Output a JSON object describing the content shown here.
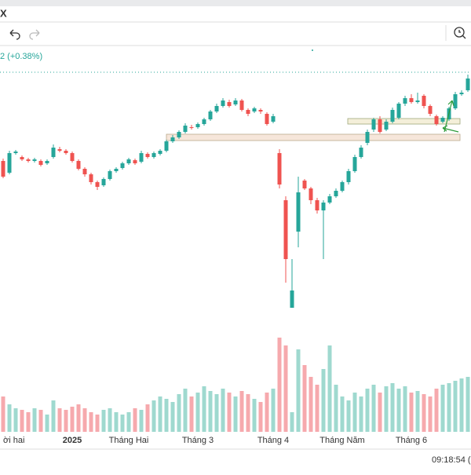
{
  "toolbar": {
    "tab": "X"
  },
  "header": {
    "change": "2 (+0.38%)"
  },
  "status": {
    "time": "09:18:54 ("
  },
  "chart_data": {
    "type": "candlestick",
    "up_color": "#26a69a",
    "down_color": "#ef5350",
    "volume_up_color": "#9fd9cf",
    "volume_down_color": "#f6a9ad",
    "ylim": [
      0,
      320
    ],
    "categories": [
      "ời hai",
      null,
      null,
      null,
      null,
      null,
      null,
      null,
      null,
      null,
      null,
      "2025",
      null,
      null,
      null,
      null,
      null,
      null,
      null,
      null,
      "Tháng Hai",
      null,
      null,
      null,
      null,
      null,
      null,
      null,
      null,
      null,
      null,
      "Tháng 3",
      null,
      null,
      null,
      null,
      null,
      null,
      null,
      null,
      null,
      null,
      null,
      "Tháng 4",
      null,
      null,
      null,
      null,
      null,
      null,
      null,
      null,
      null,
      null,
      "Tháng Năm",
      null,
      null,
      null,
      null,
      null,
      null,
      null,
      null,
      null,
      null,
      "Tháng 6",
      null,
      null,
      null,
      null,
      null,
      null,
      null,
      null,
      null
    ],
    "ohlc": [
      [
        195,
        198,
        173,
        175
      ],
      [
        180,
        208,
        178,
        205
      ],
      [
        205,
        209,
        203,
        207
      ],
      [
        200,
        202,
        195,
        197
      ],
      [
        197,
        199,
        193,
        195
      ],
      [
        195,
        199,
        193,
        197
      ],
      [
        195,
        197,
        188,
        190
      ],
      [
        192,
        197,
        190,
        195
      ],
      [
        200,
        216,
        198,
        212
      ],
      [
        210,
        213,
        206,
        208
      ],
      [
        208,
        210,
        203,
        205
      ],
      [
        205,
        207,
        193,
        195
      ],
      [
        195,
        197,
        183,
        185
      ],
      [
        185,
        187,
        175,
        178
      ],
      [
        178,
        180,
        165,
        168
      ],
      [
        168,
        170,
        158,
        162
      ],
      [
        164,
        174,
        162,
        172
      ],
      [
        172,
        184,
        170,
        182
      ],
      [
        182,
        187,
        180,
        185
      ],
      [
        186,
        194,
        184,
        192
      ],
      [
        192,
        199,
        190,
        197
      ],
      [
        196,
        198,
        190,
        192
      ],
      [
        194,
        208,
        192,
        205
      ],
      [
        204,
        206,
        198,
        200
      ],
      [
        200,
        207,
        198,
        205
      ],
      [
        204,
        210,
        202,
        208
      ],
      [
        208,
        222,
        206,
        220
      ],
      [
        220,
        228,
        218,
        225
      ],
      [
        225,
        234,
        223,
        232
      ],
      [
        232,
        243,
        230,
        240
      ],
      [
        238,
        241,
        235,
        237
      ],
      [
        238,
        244,
        236,
        242
      ],
      [
        242,
        250,
        240,
        248
      ],
      [
        248,
        260,
        246,
        258
      ],
      [
        258,
        268,
        256,
        265
      ],
      [
        265,
        275,
        263,
        272
      ],
      [
        270,
        273,
        263,
        265
      ],
      [
        267,
        275,
        265,
        272
      ],
      [
        272,
        274,
        258,
        260
      ],
      [
        260,
        262,
        252,
        255
      ],
      [
        258,
        264,
        256,
        262
      ],
      [
        260,
        262,
        255,
        258
      ],
      [
        255,
        257,
        240,
        242
      ],
      [
        245,
        255,
        243,
        252
      ],
      [
        205,
        210,
        160,
        165
      ],
      [
        145,
        150,
        40,
        70
      ],
      [
        8,
        70,
        8,
        30
      ],
      [
        105,
        175,
        85,
        155
      ],
      [
        170,
        172,
        158,
        160
      ],
      [
        160,
        162,
        140,
        145
      ],
      [
        145,
        148,
        128,
        132
      ],
      [
        132,
        145,
        70,
        142
      ],
      [
        142,
        153,
        140,
        150
      ],
      [
        150,
        160,
        148,
        157
      ],
      [
        157,
        170,
        155,
        168
      ],
      [
        168,
        185,
        165,
        182
      ],
      [
        182,
        203,
        180,
        200
      ],
      [
        200,
        215,
        198,
        212
      ],
      [
        218,
        235,
        215,
        232
      ],
      [
        235,
        250,
        232,
        248
      ],
      [
        248,
        252,
        230,
        232
      ],
      [
        235,
        248,
        233,
        245
      ],
      [
        245,
        263,
        243,
        260
      ],
      [
        250,
        270,
        248,
        268
      ],
      [
        268,
        278,
        265,
        275
      ],
      [
        275,
        280,
        268,
        270
      ],
      [
        270,
        282,
        268,
        272
      ],
      [
        278,
        280,
        262,
        265
      ],
      [
        265,
        267,
        252,
        255
      ],
      [
        252,
        254,
        240,
        242
      ],
      [
        245,
        252,
        243,
        250
      ],
      [
        248,
        264,
        246,
        262
      ],
      [
        262,
        283,
        260,
        280
      ],
      [
        280,
        285,
        278,
        282
      ],
      [
        285,
        305,
        283,
        300
      ]
    ],
    "volume": {
      "ylim": [
        0,
        130
      ],
      "values": [
        45,
        35,
        30,
        28,
        25,
        30,
        28,
        22,
        40,
        30,
        28,
        32,
        35,
        30,
        25,
        22,
        28,
        30,
        25,
        22,
        25,
        30,
        28,
        35,
        40,
        45,
        42,
        38,
        48,
        55,
        45,
        50,
        58,
        52,
        48,
        55,
        50,
        45,
        52,
        48,
        42,
        38,
        50,
        55,
        120,
        110,
        25,
        105,
        85,
        70,
        60,
        80,
        110,
        60,
        45,
        40,
        50,
        45,
        55,
        60,
        50,
        58,
        62,
        55,
        58,
        50,
        52,
        48,
        45,
        55,
        60,
        62,
        65,
        68,
        70
      ]
    }
  }
}
